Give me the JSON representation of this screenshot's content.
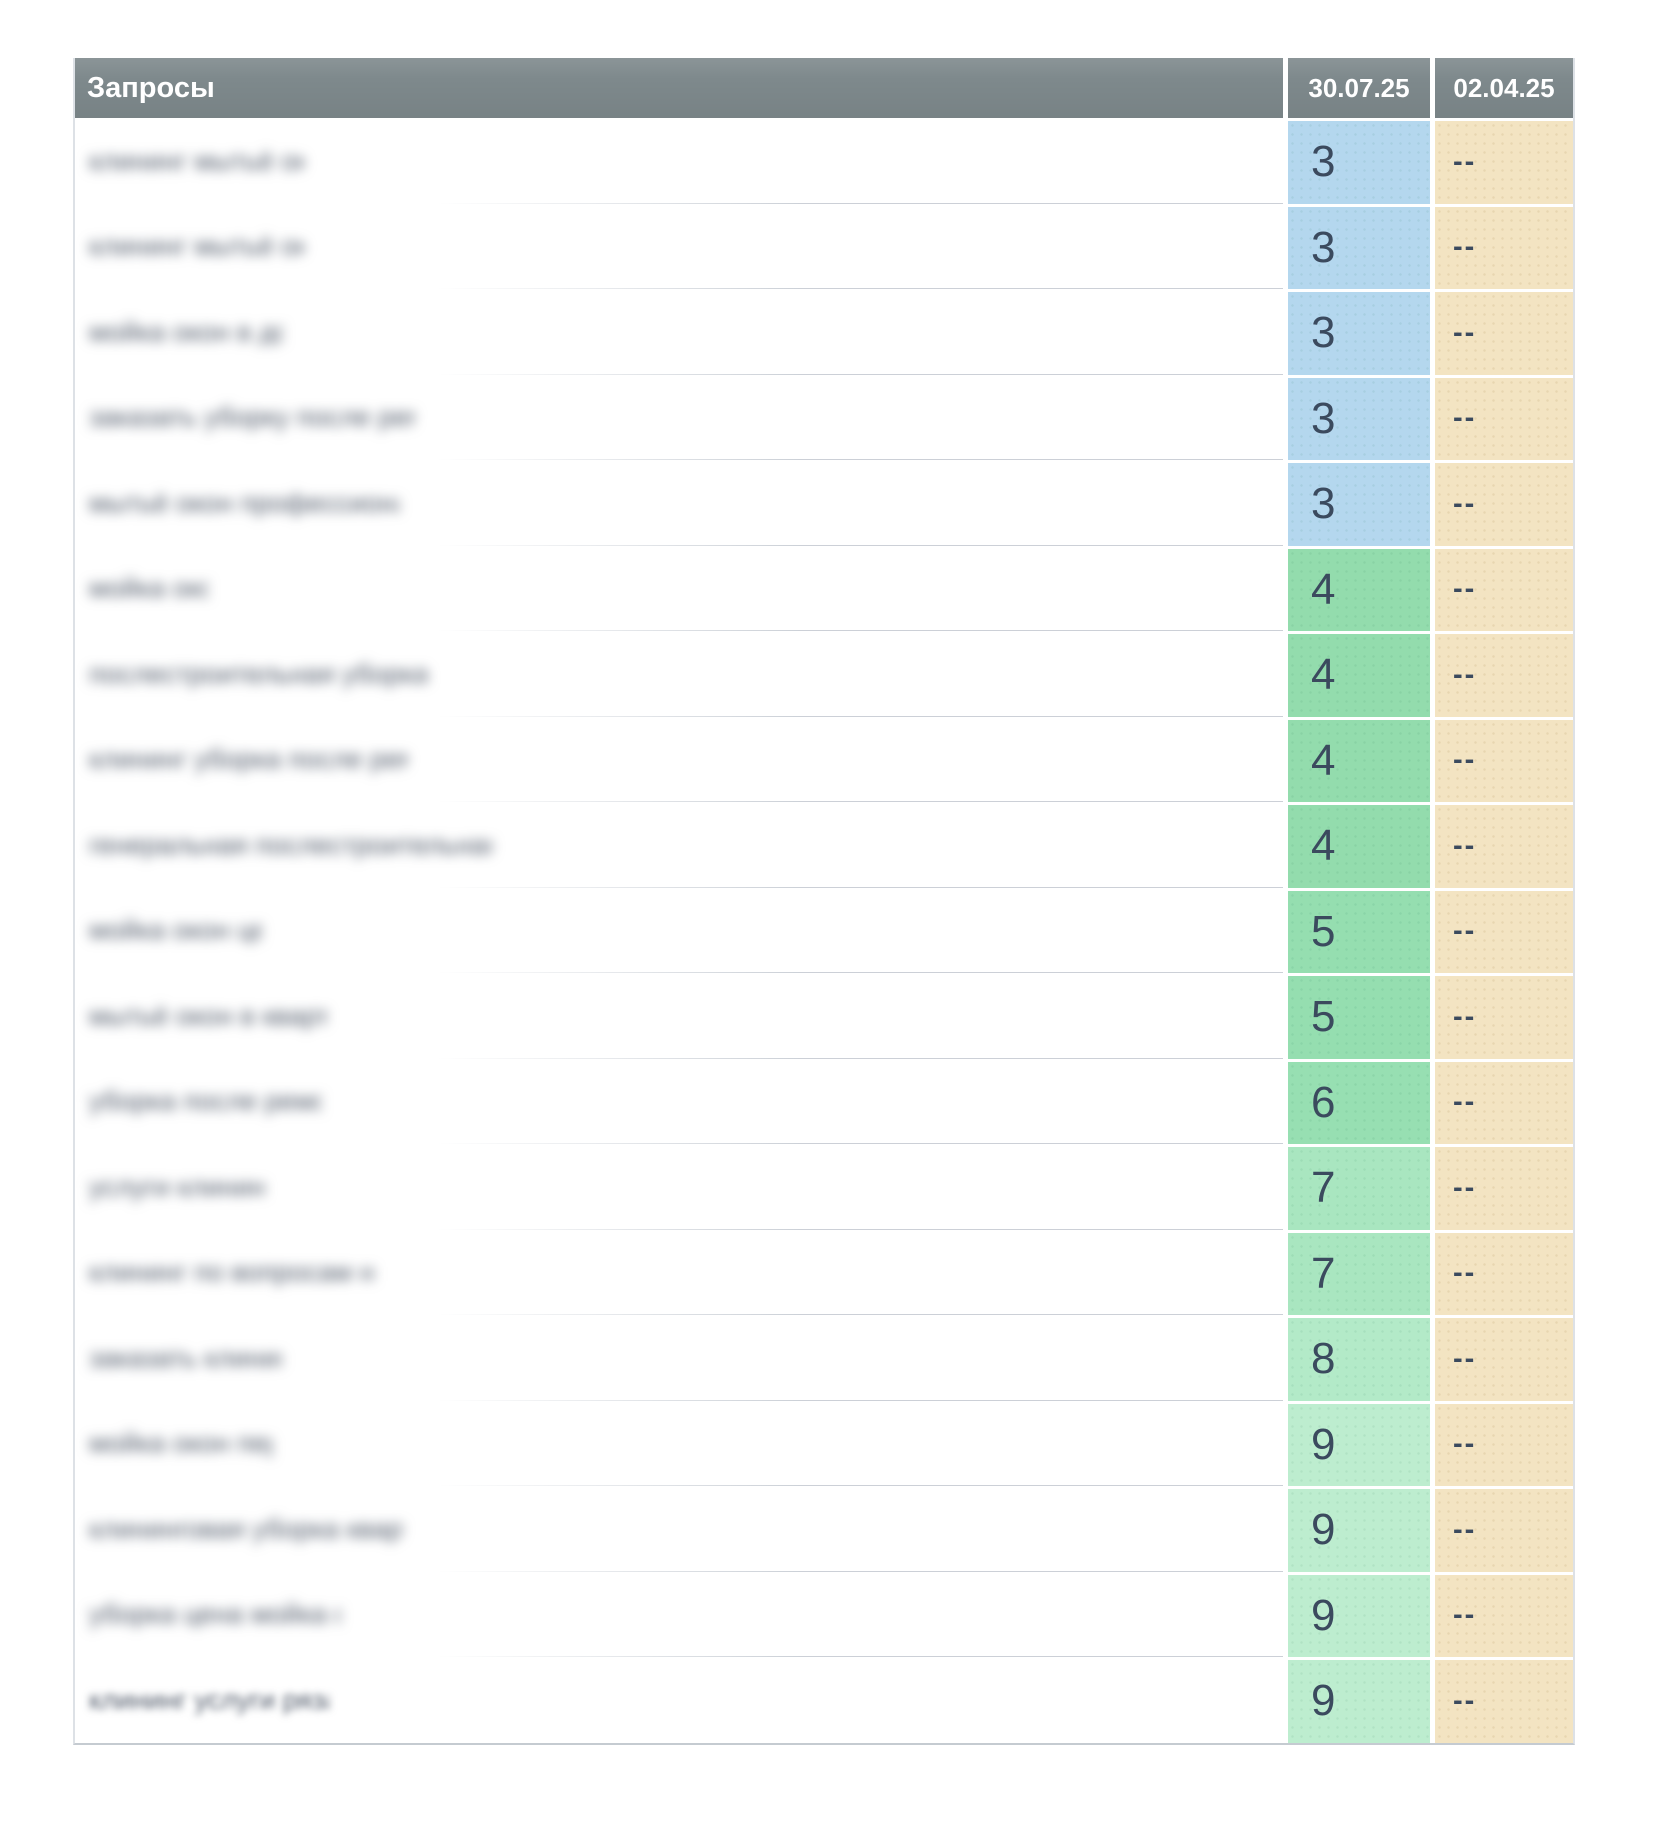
{
  "table": {
    "header": {
      "queries_label": "Запросы",
      "date_columns": [
        "30.07.25",
        "02.04.25"
      ]
    },
    "rows": [
      {
        "query": "клининг мытьё окон",
        "masked": true,
        "mask_width": 215,
        "blur": 6,
        "current": "3",
        "previous": "--",
        "color_key": "pos-3"
      },
      {
        "query": "клининг мытьё окна",
        "masked": true,
        "mask_width": 215,
        "blur": 6,
        "current": "3",
        "previous": "--",
        "color_key": "pos-3"
      },
      {
        "query": "мойка окон в доме",
        "masked": true,
        "mask_width": 195,
        "blur": 6,
        "current": "3",
        "previous": "--",
        "color_key": "pos-3"
      },
      {
        "query": "заказать уборку после ремонта",
        "masked": true,
        "mask_width": 325,
        "blur": 6,
        "current": "3",
        "previous": "--",
        "color_key": "pos-3"
      },
      {
        "query": "мытьё окон профессионально",
        "masked": true,
        "mask_width": 310,
        "blur": 6,
        "current": "3",
        "previous": "--",
        "color_key": "pos-3"
      },
      {
        "query": "мойка окон",
        "masked": true,
        "mask_width": 120,
        "blur": 6,
        "current": "4",
        "previous": "--",
        "color_key": "pos-4"
      },
      {
        "query": "послестроительная уборка цена",
        "masked": true,
        "mask_width": 338,
        "blur": 6,
        "current": "4",
        "previous": "--",
        "color_key": "pos-4"
      },
      {
        "query": "клининг уборка после ремонта",
        "masked": true,
        "mask_width": 318,
        "blur": 6,
        "current": "4",
        "previous": "--",
        "color_key": "pos-4"
      },
      {
        "query": "генеральная послестроительная уборка",
        "masked": true,
        "mask_width": 403,
        "blur": 6,
        "current": "4",
        "previous": "--",
        "color_key": "pos-4"
      },
      {
        "query": "мойка окон цена",
        "masked": true,
        "mask_width": 173,
        "blur": 6,
        "current": "5",
        "previous": "--",
        "color_key": "pos-5"
      },
      {
        "query": "мытьё окон в квартире",
        "masked": true,
        "mask_width": 238,
        "blur": 6,
        "current": "5",
        "previous": "--",
        "color_key": "pos-5"
      },
      {
        "query": "уборка после ремонта",
        "masked": true,
        "mask_width": 233,
        "blur": 6,
        "current": "6",
        "previous": "--",
        "color_key": "pos-6"
      },
      {
        "query": "услуги клининга",
        "masked": true,
        "mask_width": 175,
        "blur": 6,
        "current": "7",
        "previous": "--",
        "color_key": "pos-7"
      },
      {
        "query": "клининг по вопросам на дом",
        "masked": true,
        "mask_width": 285,
        "blur": 6,
        "current": "7",
        "previous": "--",
        "color_key": "pos-7"
      },
      {
        "query": "заказать клининг",
        "masked": true,
        "mask_width": 192,
        "blur": 6,
        "current": "8",
        "previous": "--",
        "color_key": "pos-8"
      },
      {
        "query": "мойка окон пермь",
        "masked": true,
        "mask_width": 182,
        "blur": 6,
        "current": "9",
        "previous": "--",
        "color_key": "pos-9"
      },
      {
        "query": "клининговая уборка квартиры",
        "masked": true,
        "mask_width": 315,
        "blur": 6,
        "current": "9",
        "previous": "--",
        "color_key": "pos-9"
      },
      {
        "query": "уборка цена мойка окон",
        "masked": true,
        "mask_width": 252,
        "blur": 6,
        "current": "9",
        "previous": "--",
        "color_key": "pos-9"
      },
      {
        "query": "клининг услуги рязань",
        "masked": true,
        "mask_width": 240,
        "blur": 4,
        "current": "9",
        "previous": "--",
        "color_key": "pos-9"
      }
    ]
  },
  "colors": {
    "header-bg": "#7e898c",
    "header-text": "#ffffff",
    "prev-bg": "#f3e4c2",
    "value-text": "#3b4a5e",
    "query-text": "#4b5565",
    "row-line": "#c9ced5",
    "pos-3": "#b4d7ee",
    "pos-4": "#93dcad",
    "pos-5": "#95deb0",
    "pos-6": "#97dfb2",
    "pos-7": "#a9e6c0",
    "pos-8": "#b3eac8",
    "pos-9": "#bdedcf"
  }
}
